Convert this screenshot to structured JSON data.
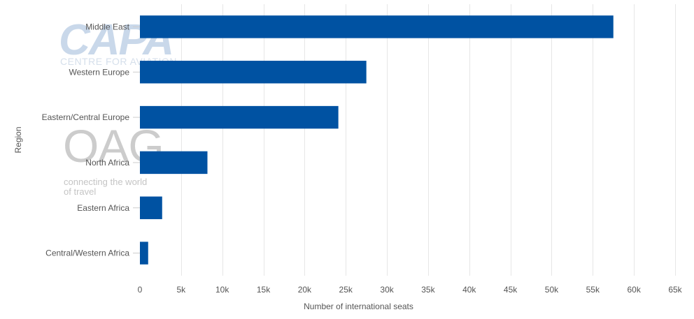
{
  "watermarks": {
    "capa_word": "CAPA",
    "capa_sub": "CENTRE FOR AVIATION",
    "oag_word": "OAG",
    "oag_tagline": "connecting the world of travel"
  },
  "chart_data": {
    "type": "bar",
    "orientation": "horizontal",
    "categories": [
      "Middle East",
      "Western Europe",
      "Eastern/Central Europe",
      "North Africa",
      "Eastern Africa",
      "Central/Western Africa"
    ],
    "series": [
      {
        "values": [
          57500,
          27500,
          24100,
          8200,
          2700,
          1000
        ],
        "color": "#0052a2"
      }
    ],
    "xlabel": "Number of international seats",
    "ylabel": "Region",
    "xlim": [
      0,
      65000
    ],
    "x_ticks": [
      0,
      5000,
      10000,
      15000,
      20000,
      25000,
      30000,
      35000,
      40000,
      45000,
      50000,
      55000,
      60000,
      65000
    ],
    "x_tick_labels": [
      "0",
      "5k",
      "10k",
      "15k",
      "20k",
      "25k",
      "30k",
      "35k",
      "40k",
      "45k",
      "50k",
      "55k",
      "60k",
      "65k"
    ],
    "grid": "vertical",
    "legend": "none",
    "colors": {
      "bar": "#0052a2",
      "grid": "#e6e6e6",
      "text": "#555555"
    }
  }
}
